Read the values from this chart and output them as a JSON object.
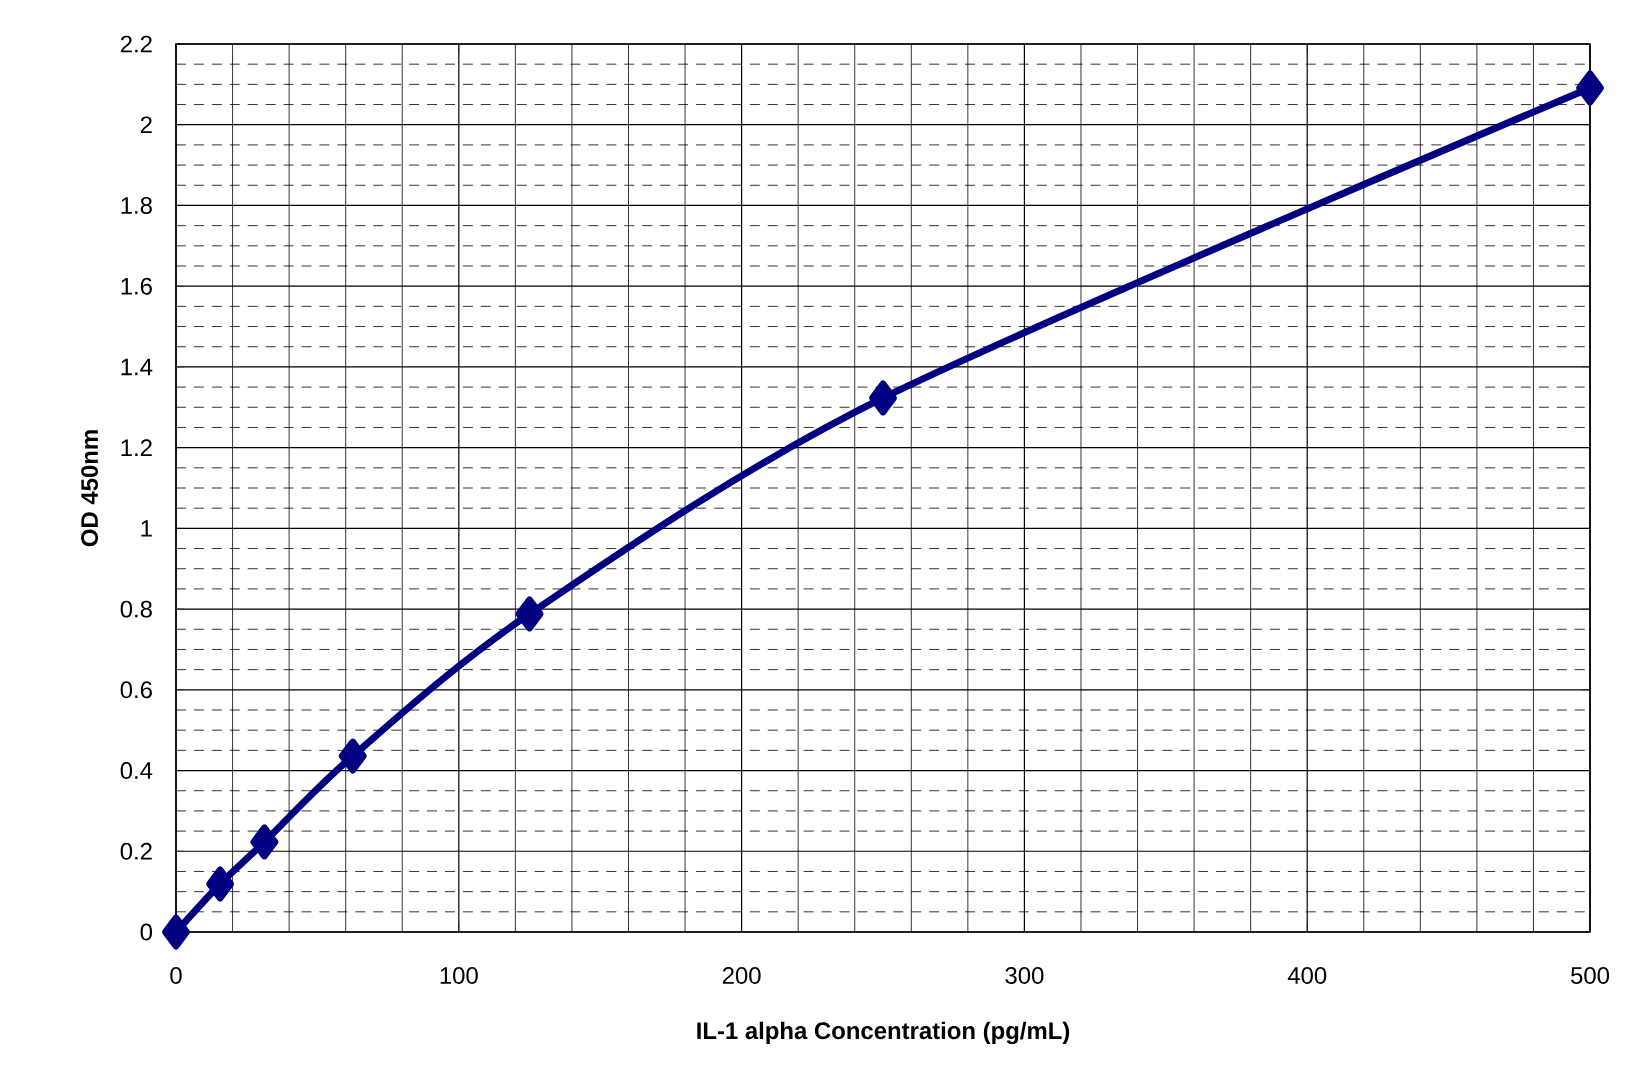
{
  "chart_data": {
    "type": "line",
    "xlabel": "IL-1 alpha Concentration (pg/mL)",
    "ylabel": "OD 450nm",
    "x": [
      0,
      15.6,
      31.25,
      62.5,
      125,
      250,
      500
    ],
    "series": [
      {
        "color": "#000080",
        "values": [
          0,
          0.119,
          0.223,
          0.436,
          0.788,
          1.323,
          2.091
        ]
      }
    ],
    "xlim": [
      0,
      500
    ],
    "ylim": [
      0,
      2.2
    ],
    "xticks": [
      0,
      100,
      200,
      300,
      400,
      500
    ],
    "yticks": [
      0,
      0.2,
      0.4,
      0.6,
      0.8,
      1,
      1.2,
      1.4,
      1.6,
      1.8,
      2,
      2.2
    ],
    "grid": true,
    "marker": "diamond",
    "line_style": "solid"
  }
}
